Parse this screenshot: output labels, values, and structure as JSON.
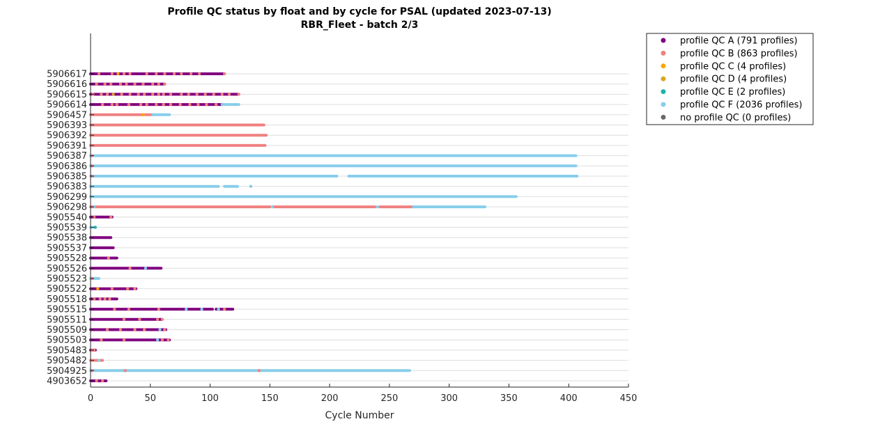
{
  "chart_data": {
    "type": "scatter",
    "title": "Profile QC status by float and by cycle for PSAL (updated 2023-07-13)",
    "subtitle": "RBR_Fleet - batch 2/3",
    "xlabel": "Cycle Number",
    "ylabel": "",
    "xlim": [
      0,
      450
    ],
    "xticks": [
      "0",
      "50",
      "100",
      "150",
      "200",
      "250",
      "300",
      "350",
      "400",
      "450"
    ],
    "grid": "horizontal",
    "legend_position": "outside-top-right",
    "categories": [
      "5906617",
      "5906616",
      "5906615",
      "5906614",
      "5906457",
      "5906393",
      "5906392",
      "5906391",
      "5906387",
      "5906386",
      "5906385",
      "5906383",
      "5906299",
      "5906298",
      "5905540",
      "5905539",
      "5905538",
      "5905537",
      "5905528",
      "5905526",
      "5905523",
      "5905522",
      "5905518",
      "5905515",
      "5905511",
      "5905509",
      "5905503",
      "5905483",
      "5905482",
      "5904925",
      "4903652"
    ],
    "series": [
      {
        "name": "profile QC A (791 profiles)",
        "color": "#800080"
      },
      {
        "name": "profile QC B (863 profiles)",
        "color": "#f08080"
      },
      {
        "name": "profile QC C (4 profiles)",
        "color": "#ffa500"
      },
      {
        "name": "profile QC D (4 profiles)",
        "color": "#daa520"
      },
      {
        "name": "profile QC E (2 profiles)",
        "color": "#20b2aa"
      },
      {
        "name": "profile QC F (2036 profiles)",
        "color": "#87ceeb"
      },
      {
        "name": "no profile QC (0 profiles)",
        "color": "#696969"
      }
    ],
    "floats": [
      {
        "id": "5906617",
        "segments": [
          [
            0,
            112,
            "A"
          ]
        ],
        "marks": [
          [
            7,
            "B"
          ],
          [
            18,
            "B"
          ],
          [
            23,
            "C"
          ],
          [
            28,
            "B"
          ],
          [
            33,
            "B"
          ],
          [
            47,
            "B"
          ],
          [
            55,
            "B"
          ],
          [
            62,
            "B"
          ],
          [
            70,
            "B"
          ],
          [
            76,
            "B"
          ],
          [
            84,
            "B"
          ],
          [
            91,
            "B"
          ],
          [
            112,
            "B"
          ]
        ]
      },
      {
        "id": "5906616",
        "segments": [
          [
            0,
            62,
            "A"
          ]
        ],
        "marks": [
          [
            5,
            "B"
          ],
          [
            12,
            "B"
          ],
          [
            17,
            "B"
          ],
          [
            25,
            "B"
          ],
          [
            30,
            "B"
          ],
          [
            37,
            "B"
          ],
          [
            44,
            "B"
          ],
          [
            52,
            "B"
          ],
          [
            57,
            "B"
          ],
          [
            62,
            "B"
          ]
        ]
      },
      {
        "id": "5906615",
        "segments": [
          [
            0,
            124,
            "A"
          ]
        ],
        "marks": [
          [
            2,
            "B"
          ],
          [
            9,
            "B"
          ],
          [
            14,
            "B"
          ],
          [
            19,
            "D"
          ],
          [
            26,
            "B"
          ],
          [
            33,
            "B"
          ],
          [
            40,
            "B"
          ],
          [
            45,
            "B"
          ],
          [
            52,
            "B"
          ],
          [
            57,
            "B"
          ],
          [
            61,
            "B"
          ],
          [
            67,
            "B"
          ],
          [
            76,
            "B"
          ],
          [
            82,
            "B"
          ],
          [
            89,
            "B"
          ],
          [
            96,
            "B"
          ],
          [
            103,
            "B"
          ],
          [
            110,
            "B"
          ],
          [
            116,
            "B"
          ],
          [
            124,
            "B"
          ]
        ]
      },
      {
        "id": "5906614",
        "segments": [
          [
            0,
            110,
            "A"
          ],
          [
            110,
            124,
            "F"
          ]
        ],
        "marks": [
          [
            10,
            "B"
          ],
          [
            18,
            "B"
          ],
          [
            22,
            "B"
          ],
          [
            32,
            "B"
          ],
          [
            42,
            "B"
          ],
          [
            47,
            "B"
          ],
          [
            55,
            "B"
          ],
          [
            61,
            "B"
          ],
          [
            67,
            "B"
          ],
          [
            75,
            "B"
          ],
          [
            83,
            "B"
          ],
          [
            90,
            "B"
          ],
          [
            97,
            "B"
          ],
          [
            105,
            "B"
          ]
        ]
      },
      {
        "id": "5906457",
        "segments": [
          [
            0,
            52,
            "B"
          ],
          [
            52,
            66,
            "F"
          ]
        ],
        "marks": [
          [
            44,
            "C"
          ]
        ]
      },
      {
        "id": "5906393",
        "segments": [
          [
            0,
            145,
            "B"
          ]
        ],
        "marks": []
      },
      {
        "id": "5906392",
        "segments": [
          [
            0,
            147,
            "B"
          ]
        ],
        "marks": []
      },
      {
        "id": "5906391",
        "segments": [
          [
            0,
            146,
            "B"
          ]
        ],
        "marks": []
      },
      {
        "id": "5906387",
        "segments": [
          [
            0,
            406,
            "F"
          ]
        ],
        "marks": [
          [
            1,
            "B"
          ]
        ]
      },
      {
        "id": "5906386",
        "segments": [
          [
            0,
            406,
            "F"
          ]
        ],
        "marks": [
          [
            1,
            "B"
          ]
        ]
      },
      {
        "id": "5906385",
        "segments": [
          [
            0,
            206,
            "F"
          ],
          [
            216,
            407,
            "F"
          ]
        ],
        "marks": [
          [
            1,
            "B"
          ]
        ]
      },
      {
        "id": "5906383",
        "segments": [
          [
            0,
            107,
            "F"
          ],
          [
            112,
            123,
            "F"
          ]
        ],
        "marks": [
          [
            134,
            "F"
          ]
        ]
      },
      {
        "id": "5906299",
        "segments": [
          [
            0,
            356,
            "F"
          ]
        ],
        "marks": []
      },
      {
        "id": "5906298",
        "segments": [
          [
            0,
            5,
            "B"
          ],
          [
            5,
            150,
            "B"
          ],
          [
            153,
            238,
            "B"
          ],
          [
            242,
            270,
            "B"
          ],
          [
            270,
            330,
            "F"
          ]
        ],
        "marks": [
          [
            3,
            "F"
          ],
          [
            152,
            "F"
          ],
          [
            240,
            "F"
          ]
        ]
      },
      {
        "id": "5905540",
        "segments": [
          [
            0,
            18,
            "A"
          ]
        ],
        "marks": [
          [
            3,
            "B"
          ],
          [
            17,
            "B"
          ]
        ]
      },
      {
        "id": "5905539",
        "segments": [
          [
            0,
            3,
            "F"
          ]
        ],
        "marks": [
          [
            4,
            "E"
          ]
        ]
      },
      {
        "id": "5905538",
        "segments": [
          [
            0,
            17,
            "A"
          ]
        ],
        "marks": []
      },
      {
        "id": "5905537",
        "segments": [
          [
            0,
            19,
            "A"
          ]
        ],
        "marks": []
      },
      {
        "id": "5905528",
        "segments": [
          [
            0,
            22,
            "A"
          ]
        ],
        "marks": [
          [
            15,
            "B"
          ]
        ]
      },
      {
        "id": "5905526",
        "segments": [
          [
            0,
            59,
            "A"
          ]
        ],
        "marks": [
          [
            33,
            "B"
          ],
          [
            46,
            "F"
          ]
        ]
      },
      {
        "id": "5905523",
        "segments": [
          [
            0,
            7,
            "F"
          ]
        ],
        "marks": [
          [
            1,
            "B"
          ]
        ]
      },
      {
        "id": "5905522",
        "segments": [
          [
            0,
            38,
            "A"
          ]
        ],
        "marks": [
          [
            6,
            "C"
          ],
          [
            18,
            "B"
          ],
          [
            31,
            "B"
          ],
          [
            37,
            "B"
          ]
        ]
      },
      {
        "id": "5905518",
        "segments": [
          [
            0,
            22,
            "A"
          ]
        ],
        "marks": [
          [
            3,
            "B"
          ],
          [
            8,
            "B"
          ],
          [
            12,
            "B"
          ],
          [
            16,
            "B"
          ]
        ]
      },
      {
        "id": "5905515",
        "segments": [
          [
            0,
            92,
            "A"
          ],
          [
            94,
            102,
            "A"
          ],
          [
            105,
            119,
            "A"
          ]
        ],
        "marks": [
          [
            20,
            "B"
          ],
          [
            32,
            "B"
          ],
          [
            57,
            "B"
          ],
          [
            80,
            "F"
          ],
          [
            93,
            "F"
          ],
          [
            107,
            "F"
          ],
          [
            112,
            "B"
          ]
        ]
      },
      {
        "id": "5905511",
        "segments": [
          [
            0,
            60,
            "A"
          ]
        ],
        "marks": [
          [
            28,
            "B"
          ],
          [
            41,
            "B"
          ],
          [
            56,
            "B"
          ],
          [
            60,
            "B"
          ]
        ]
      },
      {
        "id": "5905509",
        "segments": [
          [
            0,
            63,
            "A"
          ]
        ],
        "marks": [
          [
            14,
            "B"
          ],
          [
            25,
            "B"
          ],
          [
            37,
            "B"
          ],
          [
            45,
            "B"
          ],
          [
            58,
            "F"
          ],
          [
            62,
            "B"
          ]
        ]
      },
      {
        "id": "5905503",
        "segments": [
          [
            0,
            66,
            "A"
          ]
        ],
        "marks": [
          [
            9,
            "B"
          ],
          [
            28,
            "B"
          ],
          [
            56,
            "F"
          ],
          [
            60,
            "B"
          ],
          [
            65,
            "B"
          ]
        ]
      },
      {
        "id": "5905483",
        "segments": [
          [
            0,
            4,
            "A"
          ]
        ],
        "marks": [
          [
            1,
            "B"
          ],
          [
            3,
            "B"
          ]
        ]
      },
      {
        "id": "5905482",
        "segments": [
          [
            0,
            10,
            "B"
          ]
        ],
        "marks": [
          [
            7,
            "F"
          ]
        ]
      },
      {
        "id": "5904925",
        "segments": [
          [
            0,
            267,
            "F"
          ]
        ],
        "marks": [
          [
            1,
            "B"
          ],
          [
            29,
            "B"
          ],
          [
            141,
            "B"
          ]
        ]
      },
      {
        "id": "4903652",
        "segments": [
          [
            0,
            13,
            "A"
          ]
        ],
        "marks": [
          [
            5,
            "B"
          ],
          [
            10,
            "B"
          ]
        ]
      }
    ]
  }
}
